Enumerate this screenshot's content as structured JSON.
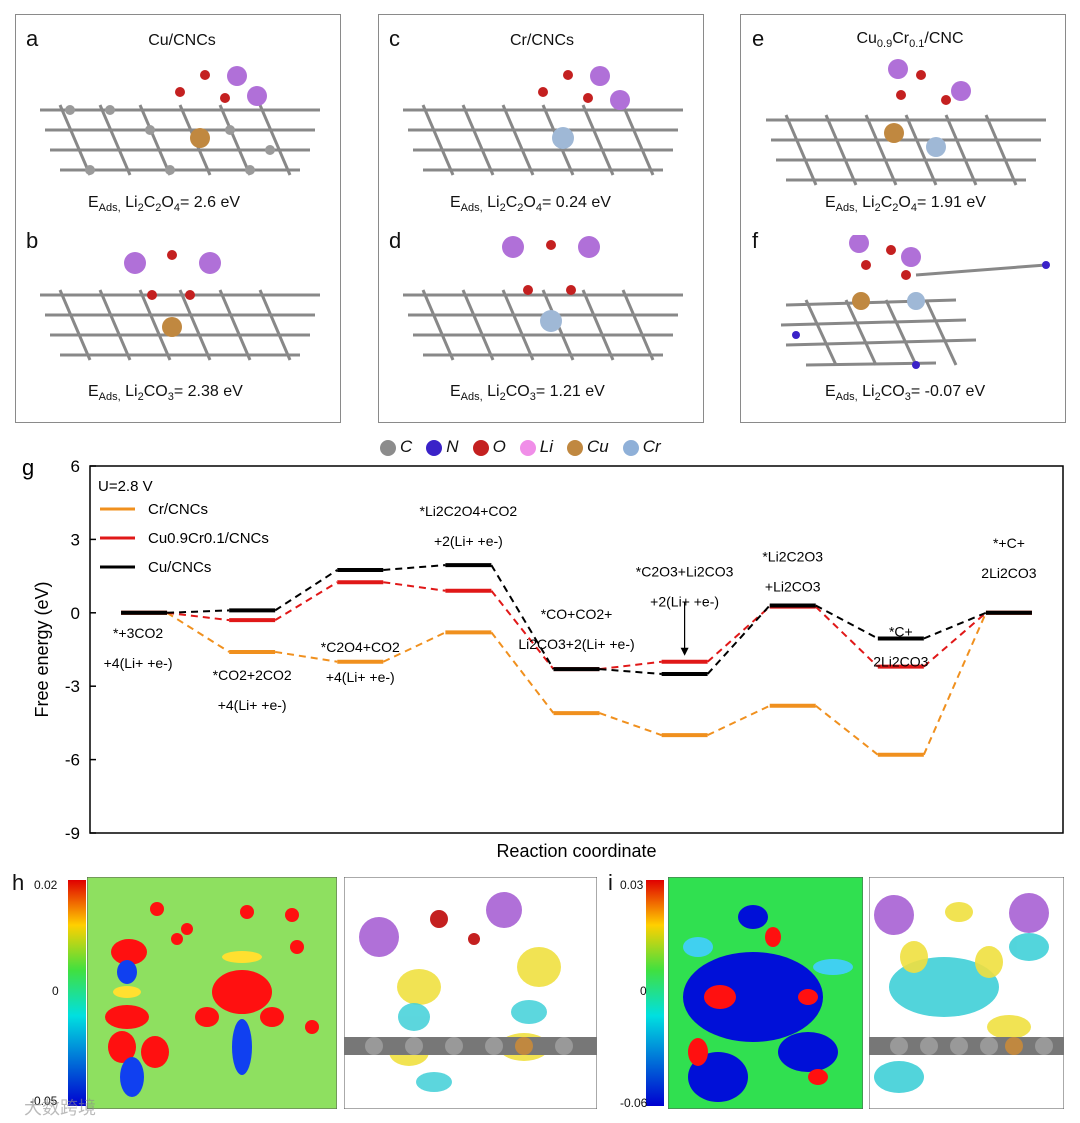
{
  "panels": {
    "a": {
      "label": "a",
      "title": "Cu/CNCs",
      "eads": "E",
      "eads_sub": "Ads,",
      "eads_species": "Li2C2O4",
      "eads_value": "= 2.6 eV"
    },
    "b": {
      "label": "b",
      "eads": "E",
      "eads_sub": "Ads,",
      "eads_species": "Li2CO3",
      "eads_value": "= 2.38 eV"
    },
    "c": {
      "label": "c",
      "title": "Cr/CNCs",
      "eads": "E",
      "eads_sub": "Ads,",
      "eads_species": "Li2C2O4",
      "eads_value": "= 0.24 eV"
    },
    "d": {
      "label": "d",
      "eads": "E",
      "eads_sub": "Ads,",
      "eads_species": "Li2CO3",
      "eads_value": "= 1.21 eV"
    },
    "e": {
      "label": "e",
      "title": "Cu0.9Cr0.1/CNC",
      "eads": "E",
      "eads_sub": "Ads,",
      "eads_species": "Li2C2O4",
      "eads_value": "= 1.91 eV"
    },
    "f": {
      "label": "f",
      "eads": "E",
      "eads_sub": "Ads,",
      "eads_species": "Li2CO3",
      "eads_value": "= -0.07 eV"
    }
  },
  "atom_legend": [
    {
      "symbol": "C",
      "color": "#8c8c8c"
    },
    {
      "symbol": "N",
      "color": "#3a22c8"
    },
    {
      "symbol": "O",
      "color": "#c42020"
    },
    {
      "symbol": "Li",
      "color": "#f08ee8"
    },
    {
      "symbol": "Cu",
      "color": "#c08840"
    },
    {
      "symbol": "Cr",
      "color": "#8fb0d8"
    }
  ],
  "chart_data": {
    "type": "line",
    "panel_label": "g",
    "xlabel": "Reaction coordinate",
    "ylabel": "Free energy (eV)",
    "ylim": [
      -9,
      6
    ],
    "yticks": [
      6,
      3,
      0,
      -3,
      -6,
      -9
    ],
    "condition": "U=2.8 V",
    "legend_position": "top-left",
    "series": [
      {
        "name": "Cr/CNCs",
        "color": "#f0901e",
        "values": [
          0,
          -1.6,
          -2.0,
          -0.8,
          -4.1,
          -5.0,
          -3.8,
          -5.8,
          0
        ]
      },
      {
        "name": "Cu0.9Cr0.1/CNCs",
        "color": "#e01818",
        "values": [
          0,
          -0.3,
          1.25,
          0.9,
          -2.3,
          -2.0,
          0.25,
          -2.2,
          0
        ]
      },
      {
        "name": "Cu/CNCs",
        "color": "#000000",
        "values": [
          0,
          0.1,
          1.75,
          1.95,
          -2.3,
          -2.5,
          0.3,
          -1.05,
          0
        ]
      }
    ],
    "step_labels": [
      [
        "*+3CO2",
        "+4(Li+ +e-)"
      ],
      [
        "*CO2+2CO2",
        "+4(Li+ +e-)"
      ],
      [
        "*C2O4+CO2",
        "+4(Li+ +e-)"
      ],
      [
        "*Li2C2O4+CO2",
        "+2(Li+ +e-)"
      ],
      [
        "*CO+CO2+",
        "Li2CO3+2(Li+ +e-)"
      ],
      [
        "*C2O3+Li2CO3",
        "+2(Li+ +e-)"
      ],
      [
        "*Li2C2O3",
        "+Li2CO3"
      ],
      [
        "*C+",
        "2Li2CO3"
      ],
      [
        "*+C+",
        "2Li2CO3"
      ]
    ]
  },
  "panel_h": {
    "label": "h",
    "scale_max": "0.02",
    "scale_mid": "0",
    "scale_min": "-0.05"
  },
  "panel_i": {
    "label": "i",
    "scale_max": "0.03",
    "scale_mid": "0",
    "scale_min": "-0.06"
  },
  "watermark": "大数跨境"
}
